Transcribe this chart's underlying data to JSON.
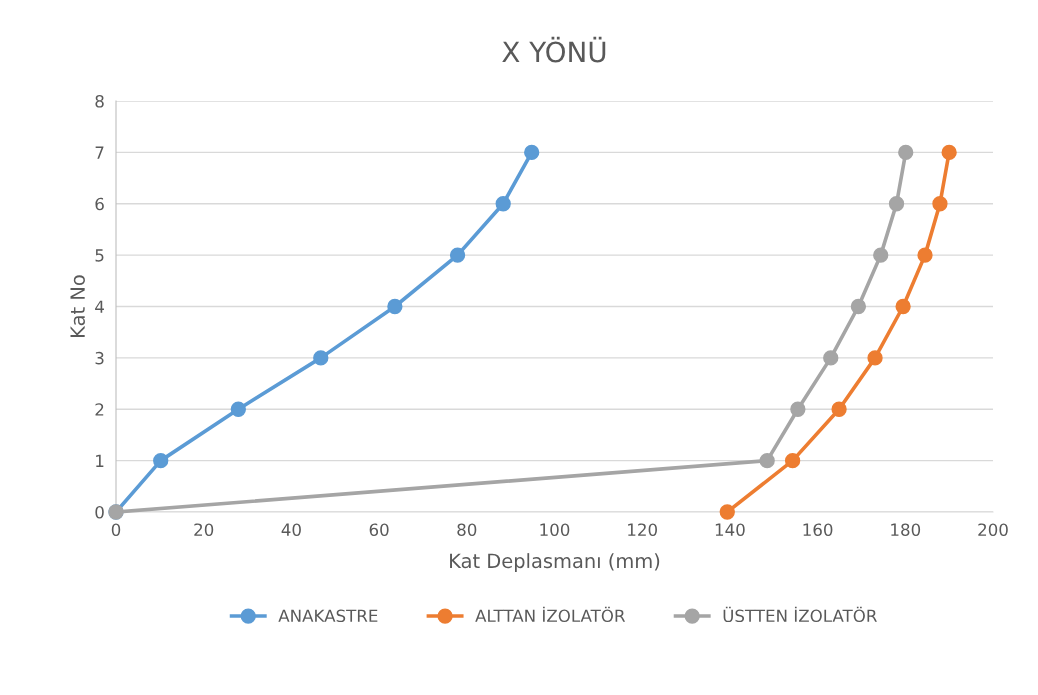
{
  "chart_data": {
    "type": "line",
    "title": "X YÖNÜ",
    "xlabel": "Kat Deplasmanı (mm)",
    "ylabel": "Kat No",
    "xlim": [
      0,
      200
    ],
    "xticks": [
      0,
      20,
      40,
      60,
      80,
      100,
      120,
      140,
      160,
      180,
      200
    ],
    "ylim": [
      0,
      8
    ],
    "yticks": [
      0,
      1,
      2,
      3,
      4,
      5,
      6,
      7,
      8
    ],
    "grid": "y",
    "legend": "bottom",
    "marker": "circle",
    "line_style": "solid",
    "series": [
      {
        "name": "ANAKASTRE",
        "color": "#5b9bd5",
        "x": [
          0,
          10.2,
          27.9,
          46.7,
          63.6,
          77.9,
          88.3,
          94.8
        ],
        "values": [
          0,
          1,
          2,
          3,
          4,
          5,
          6,
          7
        ]
      },
      {
        "name": "ALTTAN İZOLATÖR",
        "color": "#ed7d31",
        "x": [
          139.4,
          154.3,
          164.9,
          173.1,
          179.5,
          184.5,
          187.9,
          190.0
        ],
        "values": [
          0,
          1,
          2,
          3,
          4,
          5,
          6,
          7
        ]
      },
      {
        "name": "ÜSTTEN İZOLATÖR",
        "color": "#a5a5a5",
        "x": [
          0,
          148.5,
          155.5,
          163.0,
          169.3,
          174.4,
          178.0,
          180.1
        ],
        "values": [
          0,
          1,
          2,
          3,
          4,
          5,
          6,
          7
        ]
      }
    ]
  }
}
